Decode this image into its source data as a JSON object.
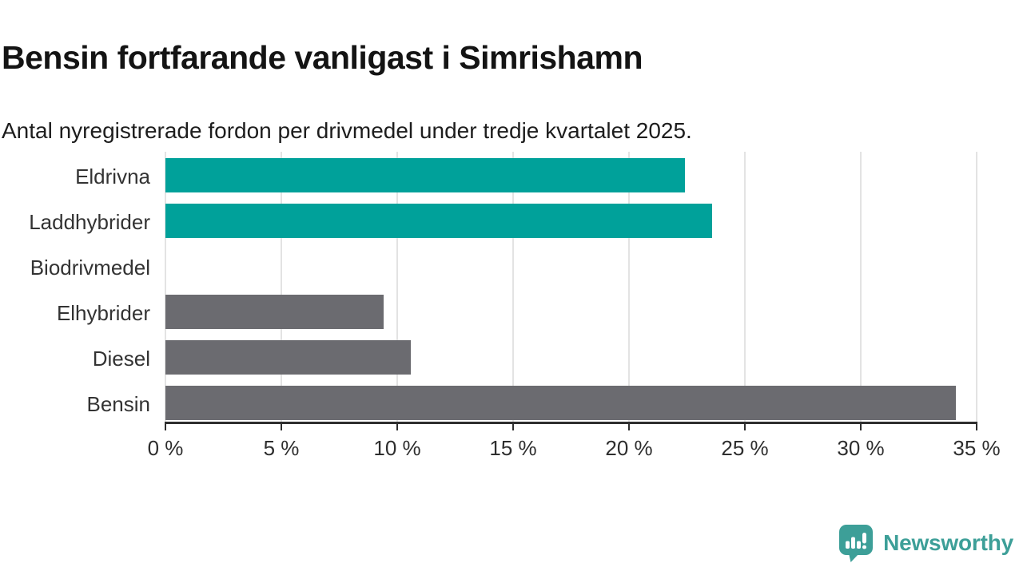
{
  "header": {
    "title": "Bensin fortfarande vanligast i Simrishamn",
    "subtitle": "Antal nyregistrerade fordon per drivmedel under tredje kvartalet 2025."
  },
  "chart_data": {
    "type": "bar",
    "orientation": "horizontal",
    "title": "Bensin fortfarande vanligast i Simrishamn",
    "subtitle": "Antal nyregistrerade fordon per drivmedel under tredje kvartalet 2025.",
    "categories": [
      "Eldrivna",
      "Laddhybrider",
      "Biodrivmedel",
      "Elhybrider",
      "Diesel",
      "Bensin"
    ],
    "values": [
      22.4,
      23.6,
      0,
      9.4,
      10.6,
      34.1
    ],
    "unit": "%",
    "xlim": [
      0,
      35
    ],
    "x_tick_values": [
      0,
      5,
      10,
      15,
      20,
      25,
      30,
      35
    ],
    "x_tick_labels": [
      "0 %",
      "5 %",
      "10 %",
      "15 %",
      "20 %",
      "25 %",
      "30 %",
      "35 %"
    ],
    "grid": true,
    "legend": "none",
    "bar_colors": [
      "#00a19a",
      "#00a19a",
      "#6b6b70",
      "#6b6b70",
      "#6b6b70",
      "#6b6b70"
    ],
    "colors": {
      "highlight_teal": "#00a19a",
      "neutral_gray": "#6b6b70",
      "gridline": "#e3e3e3",
      "axis": "#2e2e2e"
    }
  },
  "footer": {
    "brand": "Newsworthy",
    "brand_color": "#3d9f98",
    "logo_icon": "newsworthy-speech-bubble-chart-icon"
  }
}
